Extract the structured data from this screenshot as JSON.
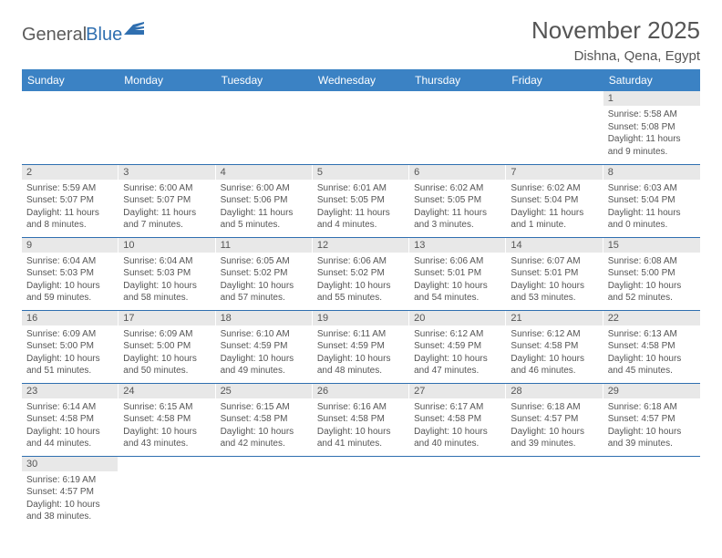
{
  "logo": {
    "part1": "General",
    "part2": "Blue"
  },
  "title": "November 2025",
  "location": "Dishna, Qena, Egypt",
  "colors": {
    "header_bg": "#3b82c4",
    "header_fg": "#ffffff",
    "row_divider": "#2f6fb0",
    "daynum_bg": "#e8e8e8",
    "text": "#555555",
    "logo_gray": "#5b5b5b",
    "logo_blue": "#2f6fb0"
  },
  "weekdays": [
    "Sunday",
    "Monday",
    "Tuesday",
    "Wednesday",
    "Thursday",
    "Friday",
    "Saturday"
  ],
  "weeks": [
    [
      null,
      null,
      null,
      null,
      null,
      null,
      {
        "n": "1",
        "sunrise": "5:58 AM",
        "sunset": "5:08 PM",
        "dl1": "Daylight: 11 hours",
        "dl2": "and 9 minutes."
      }
    ],
    [
      {
        "n": "2",
        "sunrise": "5:59 AM",
        "sunset": "5:07 PM",
        "dl1": "Daylight: 11 hours",
        "dl2": "and 8 minutes."
      },
      {
        "n": "3",
        "sunrise": "6:00 AM",
        "sunset": "5:07 PM",
        "dl1": "Daylight: 11 hours",
        "dl2": "and 7 minutes."
      },
      {
        "n": "4",
        "sunrise": "6:00 AM",
        "sunset": "5:06 PM",
        "dl1": "Daylight: 11 hours",
        "dl2": "and 5 minutes."
      },
      {
        "n": "5",
        "sunrise": "6:01 AM",
        "sunset": "5:05 PM",
        "dl1": "Daylight: 11 hours",
        "dl2": "and 4 minutes."
      },
      {
        "n": "6",
        "sunrise": "6:02 AM",
        "sunset": "5:05 PM",
        "dl1": "Daylight: 11 hours",
        "dl2": "and 3 minutes."
      },
      {
        "n": "7",
        "sunrise": "6:02 AM",
        "sunset": "5:04 PM",
        "dl1": "Daylight: 11 hours",
        "dl2": "and 1 minute."
      },
      {
        "n": "8",
        "sunrise": "6:03 AM",
        "sunset": "5:04 PM",
        "dl1": "Daylight: 11 hours",
        "dl2": "and 0 minutes."
      }
    ],
    [
      {
        "n": "9",
        "sunrise": "6:04 AM",
        "sunset": "5:03 PM",
        "dl1": "Daylight: 10 hours",
        "dl2": "and 59 minutes."
      },
      {
        "n": "10",
        "sunrise": "6:04 AM",
        "sunset": "5:03 PM",
        "dl1": "Daylight: 10 hours",
        "dl2": "and 58 minutes."
      },
      {
        "n": "11",
        "sunrise": "6:05 AM",
        "sunset": "5:02 PM",
        "dl1": "Daylight: 10 hours",
        "dl2": "and 57 minutes."
      },
      {
        "n": "12",
        "sunrise": "6:06 AM",
        "sunset": "5:02 PM",
        "dl1": "Daylight: 10 hours",
        "dl2": "and 55 minutes."
      },
      {
        "n": "13",
        "sunrise": "6:06 AM",
        "sunset": "5:01 PM",
        "dl1": "Daylight: 10 hours",
        "dl2": "and 54 minutes."
      },
      {
        "n": "14",
        "sunrise": "6:07 AM",
        "sunset": "5:01 PM",
        "dl1": "Daylight: 10 hours",
        "dl2": "and 53 minutes."
      },
      {
        "n": "15",
        "sunrise": "6:08 AM",
        "sunset": "5:00 PM",
        "dl1": "Daylight: 10 hours",
        "dl2": "and 52 minutes."
      }
    ],
    [
      {
        "n": "16",
        "sunrise": "6:09 AM",
        "sunset": "5:00 PM",
        "dl1": "Daylight: 10 hours",
        "dl2": "and 51 minutes."
      },
      {
        "n": "17",
        "sunrise": "6:09 AM",
        "sunset": "5:00 PM",
        "dl1": "Daylight: 10 hours",
        "dl2": "and 50 minutes."
      },
      {
        "n": "18",
        "sunrise": "6:10 AM",
        "sunset": "4:59 PM",
        "dl1": "Daylight: 10 hours",
        "dl2": "and 49 minutes."
      },
      {
        "n": "19",
        "sunrise": "6:11 AM",
        "sunset": "4:59 PM",
        "dl1": "Daylight: 10 hours",
        "dl2": "and 48 minutes."
      },
      {
        "n": "20",
        "sunrise": "6:12 AM",
        "sunset": "4:59 PM",
        "dl1": "Daylight: 10 hours",
        "dl2": "and 47 minutes."
      },
      {
        "n": "21",
        "sunrise": "6:12 AM",
        "sunset": "4:58 PM",
        "dl1": "Daylight: 10 hours",
        "dl2": "and 46 minutes."
      },
      {
        "n": "22",
        "sunrise": "6:13 AM",
        "sunset": "4:58 PM",
        "dl1": "Daylight: 10 hours",
        "dl2": "and 45 minutes."
      }
    ],
    [
      {
        "n": "23",
        "sunrise": "6:14 AM",
        "sunset": "4:58 PM",
        "dl1": "Daylight: 10 hours",
        "dl2": "and 44 minutes."
      },
      {
        "n": "24",
        "sunrise": "6:15 AM",
        "sunset": "4:58 PM",
        "dl1": "Daylight: 10 hours",
        "dl2": "and 43 minutes."
      },
      {
        "n": "25",
        "sunrise": "6:15 AM",
        "sunset": "4:58 PM",
        "dl1": "Daylight: 10 hours",
        "dl2": "and 42 minutes."
      },
      {
        "n": "26",
        "sunrise": "6:16 AM",
        "sunset": "4:58 PM",
        "dl1": "Daylight: 10 hours",
        "dl2": "and 41 minutes."
      },
      {
        "n": "27",
        "sunrise": "6:17 AM",
        "sunset": "4:58 PM",
        "dl1": "Daylight: 10 hours",
        "dl2": "and 40 minutes."
      },
      {
        "n": "28",
        "sunrise": "6:18 AM",
        "sunset": "4:57 PM",
        "dl1": "Daylight: 10 hours",
        "dl2": "and 39 minutes."
      },
      {
        "n": "29",
        "sunrise": "6:18 AM",
        "sunset": "4:57 PM",
        "dl1": "Daylight: 10 hours",
        "dl2": "and 39 minutes."
      }
    ],
    [
      {
        "n": "30",
        "sunrise": "6:19 AM",
        "sunset": "4:57 PM",
        "dl1": "Daylight: 10 hours",
        "dl2": "and 38 minutes."
      },
      null,
      null,
      null,
      null,
      null,
      null
    ]
  ]
}
